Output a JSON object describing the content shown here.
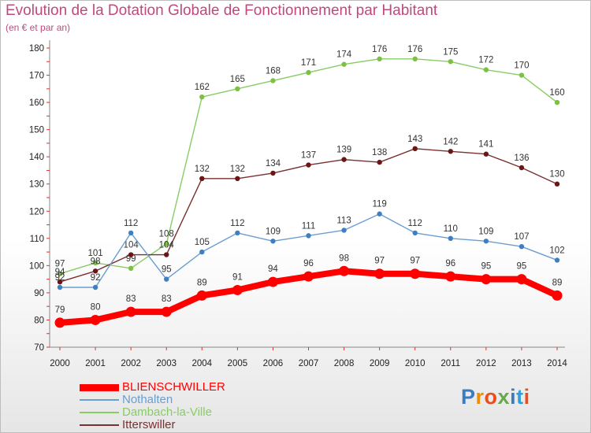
{
  "colors": {
    "title": "#c0487e"
  },
  "brand": {
    "name": "Proxiti",
    "letter_colors": [
      "#3a7cc4",
      "#f08c00",
      "#e94e1b",
      "#6aa84f",
      "#3a7cc4",
      "#2f9fd6",
      "#e94e1b"
    ]
  },
  "chart_data": {
    "type": "line",
    "title": "Evolution de la Dotation Globale de Fonctionnement par Habitant",
    "subtitle": "(en € et par an)",
    "xlabel": "",
    "ylabel": "",
    "x": [
      "2000",
      "2001",
      "2002",
      "2003",
      "2004",
      "2005",
      "2006",
      "2007",
      "2008",
      "2009",
      "2010",
      "2011",
      "2012",
      "2013",
      "2014"
    ],
    "ylim": [
      70,
      180
    ],
    "yticks": [
      "70",
      "80",
      "90",
      "100",
      "110",
      "120",
      "130",
      "140",
      "150",
      "160",
      "170",
      "180"
    ],
    "grid": false,
    "legend_position": "bottom-left",
    "series": [
      {
        "name": "Dambach-la-Ville",
        "color": "#88cc66",
        "point_color": "#7cc142",
        "weight": "thin",
        "values": [
          97,
          101,
          99,
          108,
          162,
          165,
          168,
          171,
          174,
          176,
          176,
          175,
          172,
          170,
          160
        ],
        "labels": [
          "97",
          "101",
          "99",
          "108",
          "162",
          "165",
          "168",
          "171",
          "174",
          "176",
          "176",
          "175",
          "172",
          "170",
          "160"
        ]
      },
      {
        "name": "Itterswiller",
        "color": "#7a3030",
        "point_color": "#6b1616",
        "weight": "thin",
        "values": [
          94,
          98,
          104,
          104,
          132,
          132,
          134,
          137,
          139,
          138,
          143,
          142,
          141,
          136,
          130
        ],
        "labels": [
          "94",
          "98",
          "104",
          "104",
          "132",
          "132",
          "134",
          "137",
          "139",
          "138",
          "143",
          "142",
          "141",
          "136",
          "130"
        ]
      },
      {
        "name": "Nothalten",
        "color": "#6a9ed1",
        "point_color": "#3f7fc1",
        "weight": "thin",
        "values": [
          92,
          92,
          112,
          95,
          105,
          112,
          109,
          111,
          113,
          119,
          112,
          110,
          109,
          107,
          102
        ],
        "labels": [
          "92",
          "92",
          "112",
          "95",
          "105",
          "112",
          "109",
          "111",
          "113",
          "119",
          "112",
          "110",
          "109",
          "107",
          "102"
        ]
      },
      {
        "name": "BLIENSCHWILLER",
        "color": "#ff0000",
        "point_color": "#ff0000",
        "weight": "thick",
        "values": [
          79,
          80,
          83,
          83,
          89,
          91,
          94,
          96,
          98,
          97,
          97,
          96,
          95,
          95,
          89
        ],
        "labels": [
          "79",
          "80",
          "83",
          "83",
          "89",
          "91",
          "94",
          "96",
          "98",
          "97",
          "97",
          "96",
          "95",
          "95",
          "89"
        ]
      }
    ],
    "legend_order": [
      "BLIENSCHWILLER",
      "Nothalten",
      "Dambach-la-Ville",
      "Itterswiller"
    ]
  }
}
